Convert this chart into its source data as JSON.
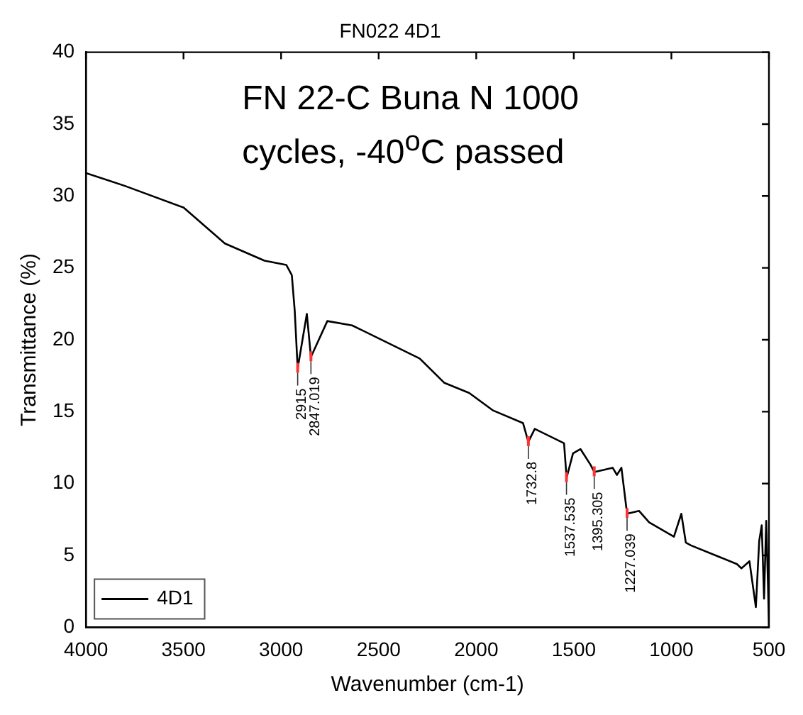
{
  "chart_data": {
    "type": "line",
    "title": "FN022 4D1",
    "xlabel": "Wavenumber (cm-1)",
    "ylabel": "Transmittance (%)",
    "xlim": [
      4000,
      500
    ],
    "xticks": [
      4000,
      3500,
      3000,
      2500,
      2000,
      1500,
      1000,
      500
    ],
    "ylim": [
      0,
      40
    ],
    "yticks": [
      0,
      5,
      10,
      15,
      20,
      25,
      30,
      35,
      40
    ],
    "grid": false,
    "legend": "bottom left",
    "marker": "none",
    "line_style": "solid",
    "series": [
      {
        "name": "4D1",
        "color": "#000000",
        "x": [
          4000,
          3800,
          3500,
          3288,
          3085,
          2973,
          2945,
          2930,
          2915,
          2868,
          2847,
          2763,
          2636,
          2290,
          2163,
          2036,
          1916,
          1760,
          1733,
          1700,
          1550,
          1537,
          1504,
          1466,
          1414,
          1395,
          1301,
          1279,
          1256,
          1227,
          1166,
          1114,
          987,
          949,
          926,
          900,
          664,
          641,
          600,
          567,
          550,
          537,
          525,
          514,
          505,
          500
        ],
        "values": [
          31.6,
          30.7,
          29.2,
          26.7,
          25.5,
          25.2,
          24.5,
          22.0,
          18.0,
          21.8,
          18.8,
          21.3,
          21.0,
          18.7,
          17.0,
          16.3,
          15.1,
          14.2,
          12.9,
          13.8,
          12.8,
          10.4,
          12.1,
          12.4,
          11.3,
          10.8,
          11.1,
          10.6,
          11.1,
          7.9,
          8.1,
          7.3,
          6.3,
          7.9,
          5.9,
          5.7,
          4.4,
          4.1,
          4.6,
          1.4,
          6.0,
          7.1,
          2.0,
          7.4,
          3.0,
          0
        ]
      }
    ],
    "annotations": [
      "FN 22-C Buna N 1000 cycles, -40$^{o}$C passed",
      {
        "text": "2915",
        "x": 2915,
        "y": 18.0
      },
      {
        "text": "2847.019",
        "x": 2847.019,
        "y": 18.8
      },
      {
        "text": "1732.8",
        "x": 1732.8,
        "y": 12.9
      },
      {
        "text": "1537.535",
        "x": 1537.535,
        "y": 10.4
      },
      {
        "text": "1395.305",
        "x": 1395.305,
        "y": 10.8
      },
      {
        "text": "1227.039",
        "x": 1227.039,
        "y": 7.9
      }
    ]
  }
}
